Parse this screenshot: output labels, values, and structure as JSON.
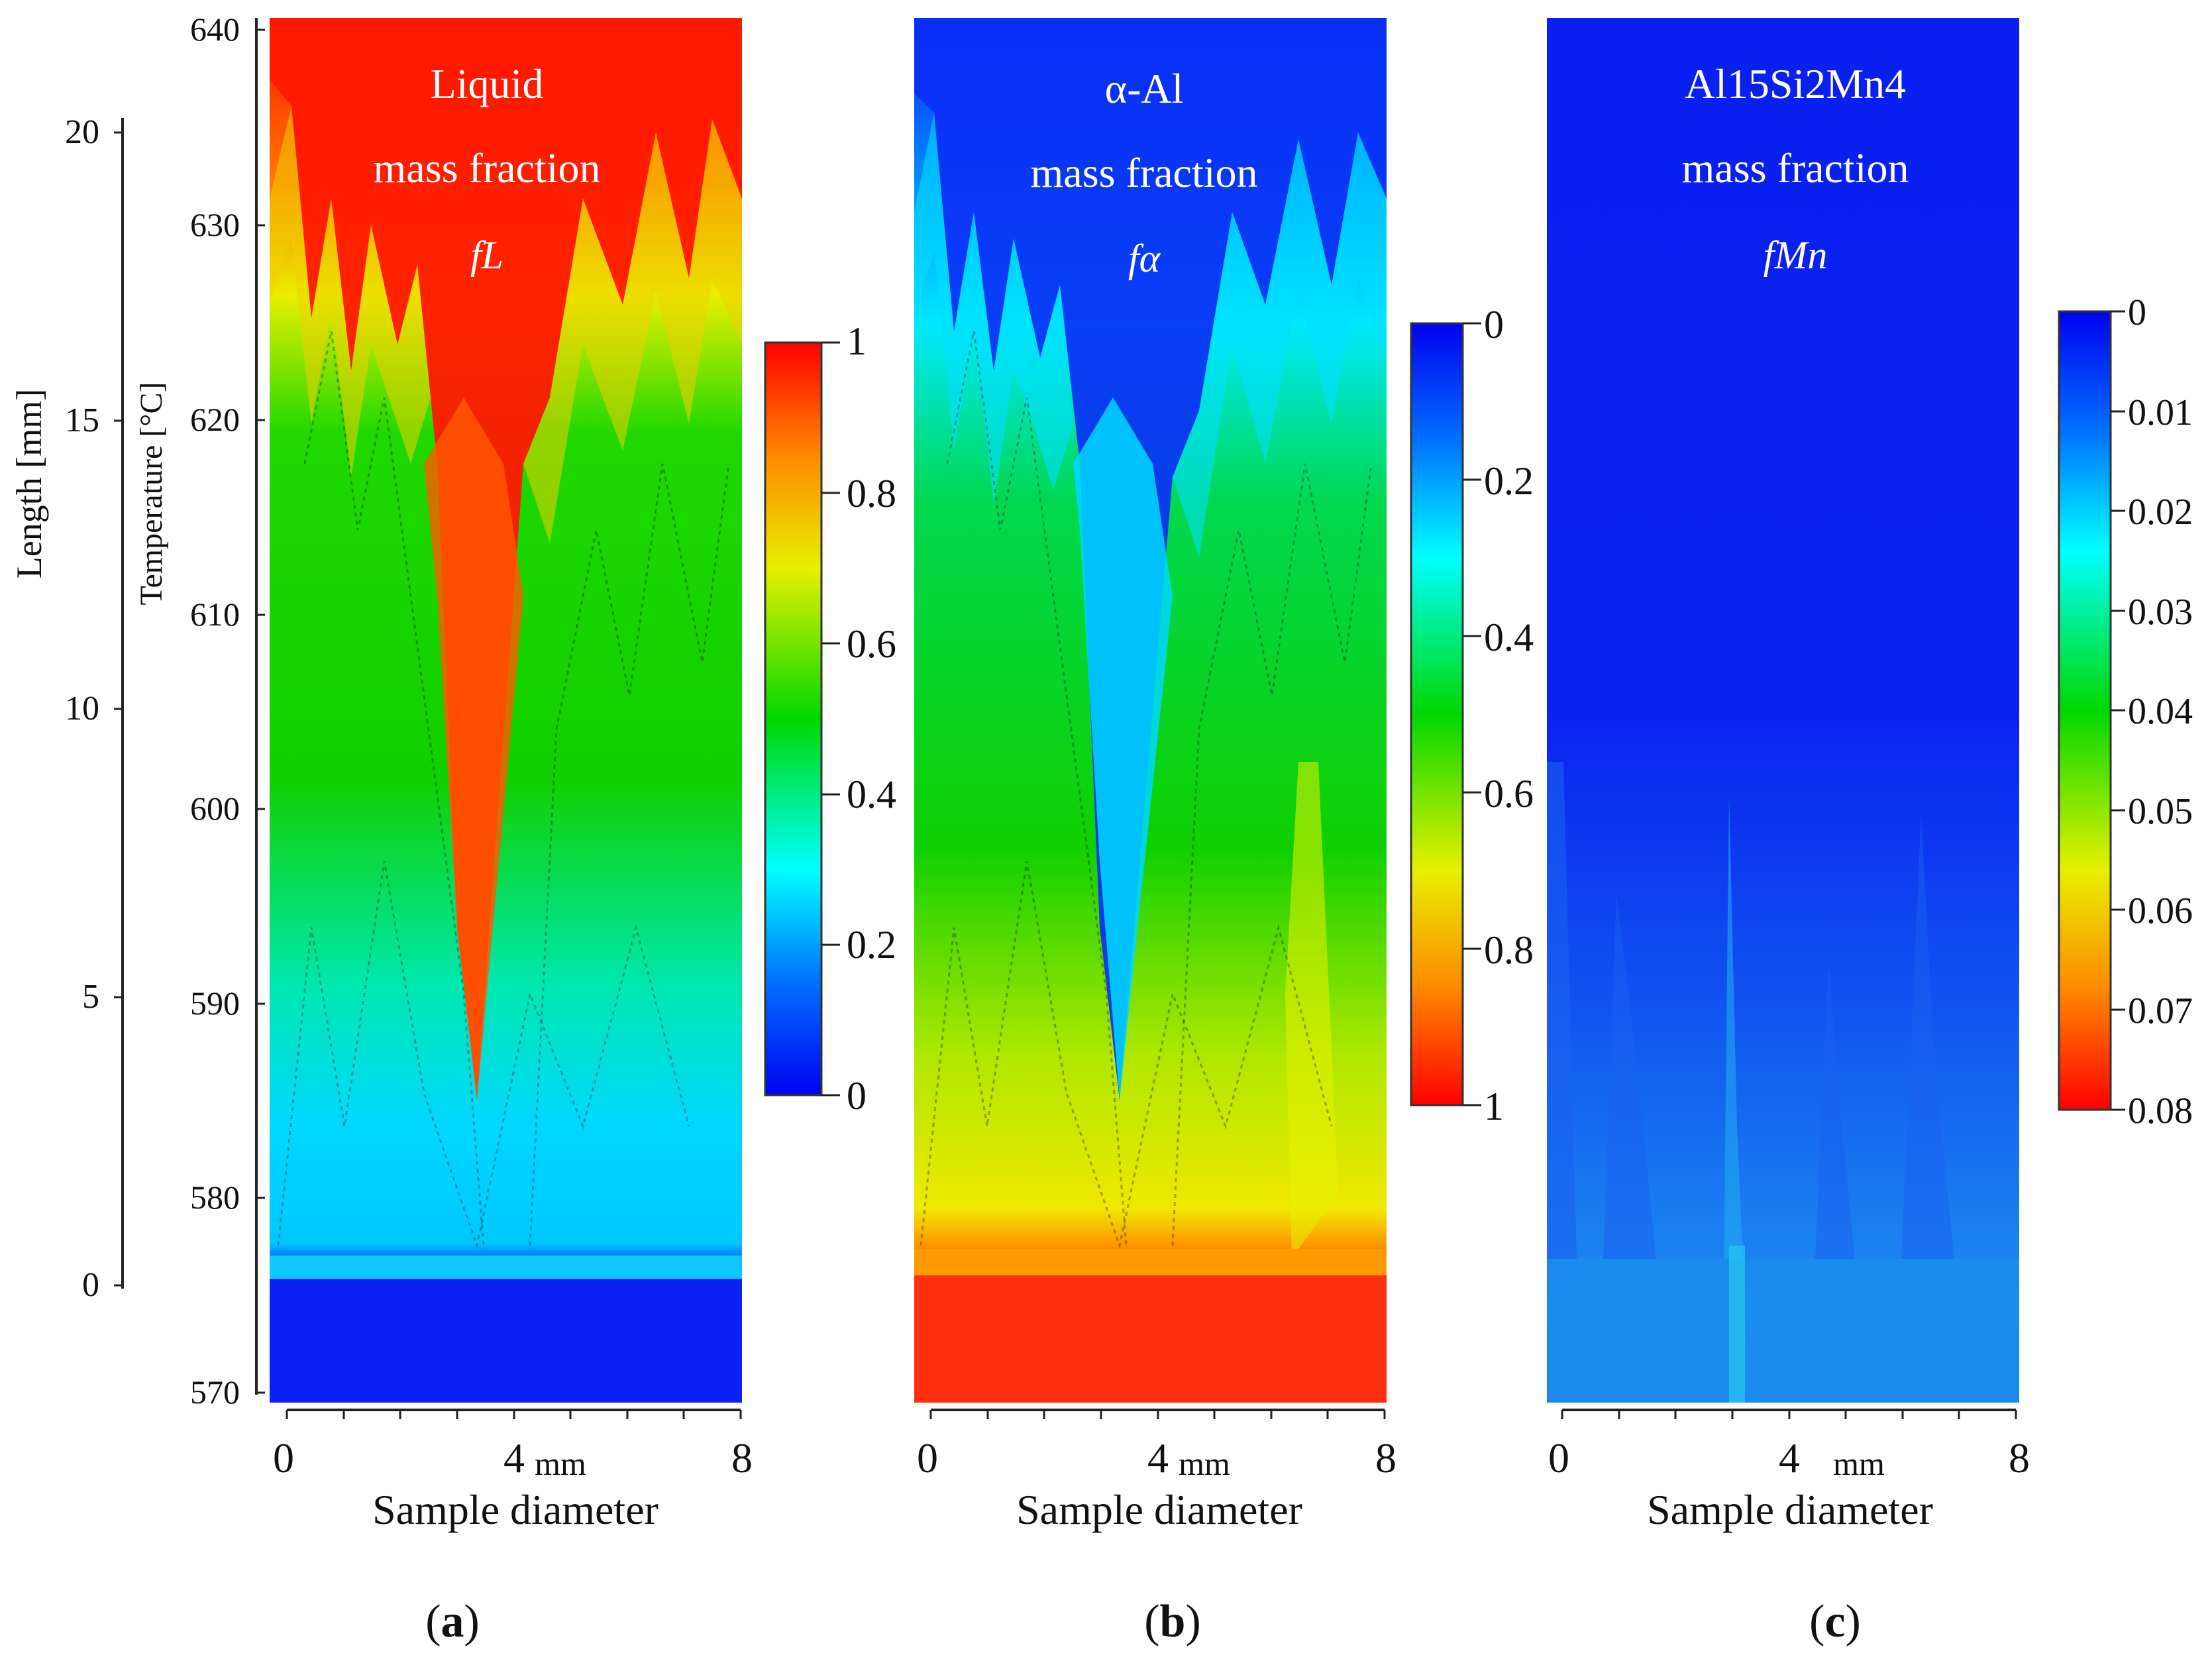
{
  "chart_data": [
    {
      "panel": "a",
      "type": "heatmap",
      "title_lines": [
        "Liquid",
        "mass fraction",
        "fL"
      ],
      "xlabel": "Sample diameter",
      "x_unit": "mm",
      "x_ticks": [
        "0",
        "4",
        "8"
      ],
      "xlim": [
        0,
        8
      ],
      "left_axis_length": {
        "label": "Length [mm]",
        "ticks": [
          "20",
          "15",
          "10",
          "5",
          "0"
        ],
        "range": [
          0,
          20
        ]
      },
      "left_axis_temperature": {
        "label": "Temperature [°C]",
        "ticks": [
          "640",
          "630",
          "620",
          "610",
          "600",
          "590",
          "580",
          "570"
        ],
        "range": [
          570,
          640
        ]
      },
      "colorbar": {
        "ticks": [
          "1",
          "0.8",
          "0.6",
          "0.4",
          "0.2",
          "0"
        ],
        "range": [
          0,
          1
        ],
        "orientation": "max-at-top"
      },
      "panel_label": "a"
    },
    {
      "panel": "b",
      "type": "heatmap",
      "title_lines": [
        "α-Al",
        "mass fraction",
        "fα"
      ],
      "xlabel": "Sample diameter",
      "x_unit": "mm",
      "x_ticks": [
        "0",
        "4",
        "8"
      ],
      "xlim": [
        0,
        8
      ],
      "colorbar": {
        "ticks": [
          "0",
          "0.2",
          "0.4",
          "0.6",
          "0.8",
          "1"
        ],
        "range": [
          0,
          1
        ],
        "orientation": "min-at-top"
      },
      "panel_label": "b"
    },
    {
      "panel": "c",
      "type": "heatmap",
      "title_lines": [
        "Al15Si2Mn4",
        "mass fraction",
        "fMn"
      ],
      "xlabel": "Sample diameter",
      "x_unit": "mm",
      "x_ticks": [
        "0",
        "4",
        "8"
      ],
      "xlim": [
        0,
        8
      ],
      "colorbar": {
        "ticks": [
          "0",
          "0.01",
          "0.02",
          "0.03",
          "0.04",
          "0.05",
          "0.06",
          "0.07",
          "0.08"
        ],
        "range": [
          0,
          0.08
        ],
        "orientation": "min-at-top"
      },
      "panel_label": "c"
    }
  ],
  "colors": {
    "red": "#ff1a00",
    "orange": "#ff8800",
    "yellow": "#e8f000",
    "green": "#00d200",
    "cyan": "#00ffff",
    "lightblue": "#2a9cf5",
    "blue": "#0a1ff5"
  }
}
